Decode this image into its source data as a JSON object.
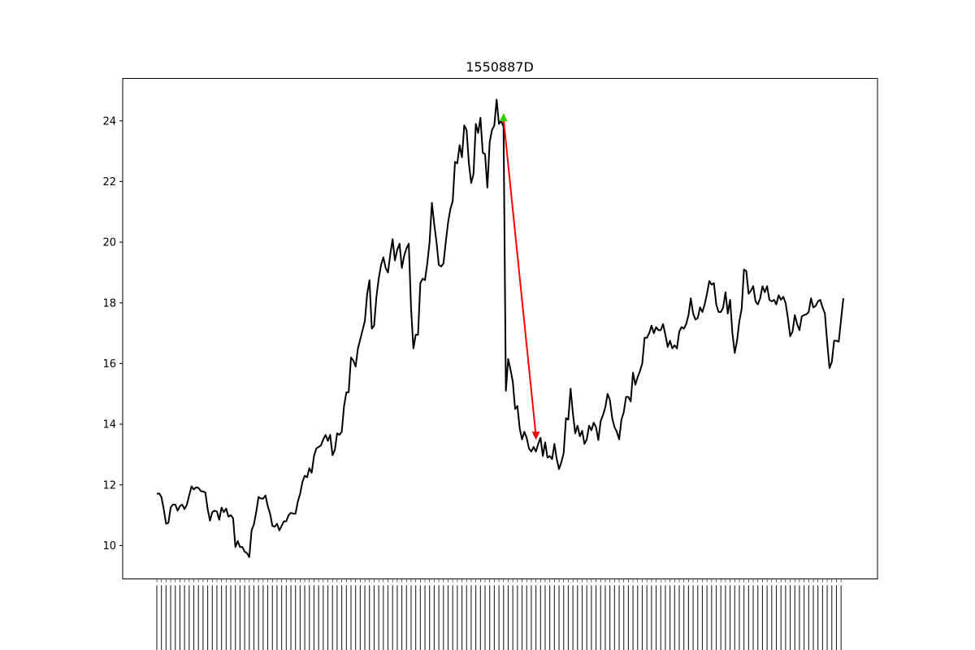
{
  "chart_data": {
    "type": "line",
    "title": "1550887D",
    "xlabel": "",
    "ylabel": "",
    "ylim": [
      8.9,
      25.4
    ],
    "yticks": [
      10,
      12,
      14,
      16,
      18,
      20,
      22,
      24
    ],
    "grid": false,
    "x_tick_labels_note_visible": false,
    "series": [
      {
        "color": "#000000",
        "values": [
          11.7,
          11.72,
          11.6,
          11.2,
          10.72,
          10.75,
          11.25,
          11.35,
          11.35,
          11.15,
          11.3,
          11.35,
          11.2,
          11.35,
          11.65,
          11.95,
          11.85,
          11.92,
          11.9,
          11.8,
          11.78,
          11.75,
          11.2,
          10.82,
          11.1,
          11.15,
          11.12,
          10.85,
          11.25,
          11.1,
          11.22,
          10.95,
          11.0,
          10.9,
          9.95,
          10.15,
          9.95,
          9.95,
          9.8,
          9.75,
          9.62,
          10.5,
          10.7,
          11.1,
          11.6,
          11.55,
          11.55,
          11.65,
          11.3,
          11.05,
          10.65,
          10.62,
          10.72,
          10.5,
          10.65,
          10.8,
          10.8,
          11.0,
          11.08,
          11.05,
          11.05,
          11.45,
          11.7,
          12.1,
          12.3,
          12.25,
          12.55,
          12.4,
          12.95,
          13.2,
          13.25,
          13.3,
          13.5,
          13.65,
          13.45,
          13.65,
          12.98,
          13.15,
          13.7,
          13.65,
          13.75,
          14.6,
          15.05,
          15.05,
          16.2,
          16.1,
          15.9,
          16.5,
          16.8,
          17.1,
          17.4,
          18.3,
          18.75,
          17.15,
          17.25,
          18.2,
          18.8,
          19.25,
          19.5,
          19.15,
          19.0,
          19.6,
          20.1,
          19.4,
          19.75,
          19.95,
          19.15,
          19.55,
          19.8,
          19.95,
          17.8,
          16.5,
          16.95,
          16.95,
          18.65,
          18.8,
          18.75,
          19.3,
          20.0,
          21.3,
          20.6,
          20.0,
          19.25,
          19.2,
          19.3,
          20.0,
          20.65,
          21.1,
          21.35,
          22.65,
          22.6,
          23.2,
          22.8,
          23.85,
          23.7,
          22.6,
          21.95,
          22.25,
          23.9,
          23.6,
          24.1,
          22.95,
          22.9,
          21.8,
          23.3,
          23.7,
          23.85,
          24.7,
          23.9,
          24.0,
          23.8,
          15.1,
          16.15,
          15.8,
          15.4,
          14.5,
          14.6,
          13.85,
          13.5,
          13.75,
          13.55,
          13.2,
          13.1,
          13.25,
          13.1,
          13.35,
          13.55,
          12.95,
          13.4,
          12.9,
          12.95,
          12.85,
          13.35,
          12.85,
          12.52,
          12.75,
          13.05,
          14.2,
          14.15,
          15.17,
          14.35,
          13.7,
          13.95,
          13.6,
          13.78,
          13.35,
          13.5,
          13.95,
          13.8,
          14.05,
          13.9,
          13.48,
          14.1,
          14.3,
          14.55,
          15.0,
          14.8,
          14.2,
          13.9,
          13.75,
          13.5,
          14.15,
          14.4,
          14.9,
          14.9,
          14.75,
          15.7,
          15.3,
          15.55,
          15.75,
          16.0,
          16.85,
          16.85,
          17.0,
          17.25,
          17.0,
          17.2,
          17.1,
          17.1,
          17.3,
          16.95,
          16.55,
          16.75,
          16.5,
          16.6,
          16.5,
          17.05,
          17.2,
          17.15,
          17.3,
          17.6,
          18.15,
          17.65,
          17.45,
          17.5,
          17.85,
          17.7,
          17.95,
          18.3,
          18.72,
          18.6,
          18.65,
          17.95,
          17.7,
          17.7,
          17.85,
          18.35,
          17.65,
          18.1,
          17.0,
          16.35,
          16.75,
          17.4,
          17.8,
          19.1,
          19.05,
          18.3,
          18.4,
          18.55,
          18.05,
          17.95,
          18.15,
          18.55,
          18.35,
          18.55,
          18.1,
          18.05,
          18.1,
          17.95,
          18.25,
          18.1,
          18.2,
          18.0,
          17.5,
          16.9,
          17.05,
          17.6,
          17.3,
          17.1,
          17.55,
          17.6,
          17.62,
          17.7,
          18.15,
          17.85,
          17.9,
          18.05,
          18.1,
          17.85,
          17.65,
          16.7,
          15.85,
          16.05,
          16.75,
          16.75,
          16.72,
          17.45,
          18.15
        ]
      }
    ],
    "annotations": [
      {
        "type": "arrow",
        "color": "#ff0000",
        "from_index": 150,
        "to_index": 164,
        "from_value": 24.05,
        "to_value": 13.62
      },
      {
        "type": "marker",
        "shape": "triangle-up",
        "color": "#33cc00",
        "index": 150,
        "value": 24.12
      },
      {
        "type": "marker",
        "shape": "triangle-down",
        "color": "#ff0000",
        "index": 164,
        "value": 13.62
      }
    ]
  }
}
